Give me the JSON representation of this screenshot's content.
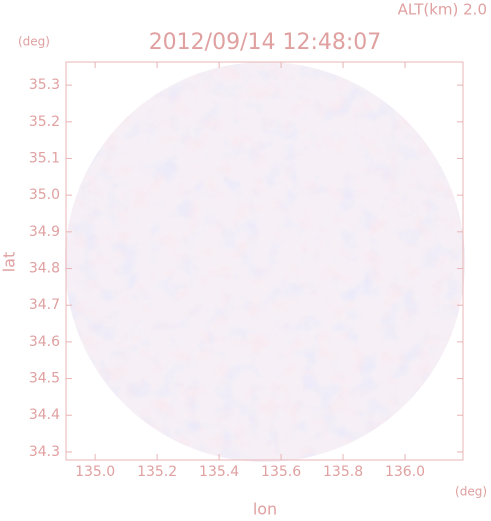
{
  "chart_data": {
    "type": "radar-field",
    "title": "2012/09/14 12:48:07",
    "subtitle": "ALT(km) 2.0",
    "x_label": "lon",
    "y_label": "lat",
    "x_unit": "(deg)",
    "y_unit": "(deg)",
    "xlim": [
      134.906,
      136.187
    ],
    "ylim": [
      34.278,
      35.363
    ],
    "xticks": [
      {
        "value": 135.0,
        "label": "135.0"
      },
      135.2,
      135.4,
      135.6,
      135.8,
      {
        "value": 136.0,
        "label": "136.0"
      }
    ],
    "yticks": [
      34.3,
      34.4,
      34.5,
      34.6,
      34.7,
      34.8,
      34.9,
      {
        "value": 35.0,
        "label": "35.0"
      },
      35.1,
      35.2,
      35.3
    ]
  }
}
